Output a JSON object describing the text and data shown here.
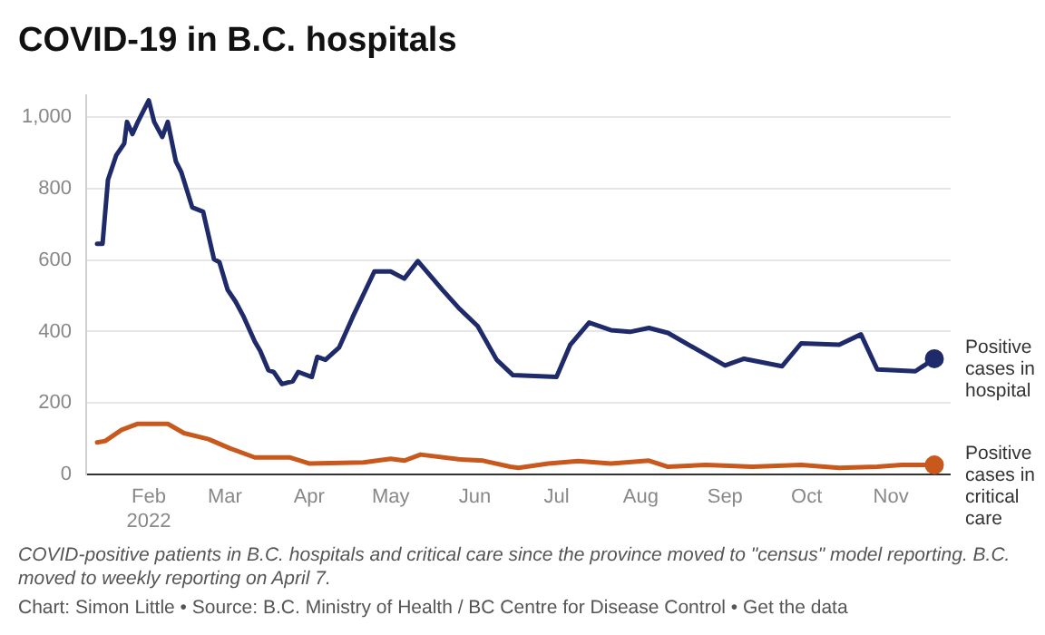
{
  "chart_data": {
    "type": "line",
    "title": "COVID-19 in B.C. hospitals",
    "annotations": [
      "COVID-positive patients in B.C. hospitals and critical care since the province moved to \"census\" model reporting. B.C. moved to weekly reporting on April 7.",
      "Chart: Simon Little • Source: B.C. Ministry of Health / BC Centre for Disease Control • Get the data"
    ],
    "xlim": [
      "2022-01-09",
      "2022-11-23"
    ],
    "xticks": [
      {
        "value": "2022-02-01",
        "label": "Feb 2022"
      },
      {
        "value": "2022-03-01",
        "label": "Mar"
      },
      {
        "value": "2022-04-01",
        "label": "Apr"
      },
      {
        "value": "2022-05-01",
        "label": "May"
      },
      {
        "value": "2022-06-01",
        "label": "Jun"
      },
      {
        "value": "2022-07-01",
        "label": "Jul"
      },
      {
        "value": "2022-08-01",
        "label": "Aug"
      },
      {
        "value": "2022-09-01",
        "label": "Sep"
      },
      {
        "value": "2022-10-01",
        "label": "Oct"
      },
      {
        "value": "2022-11-01",
        "label": "Nov"
      }
    ],
    "ylim": [
      0,
      1060
    ],
    "yticks": [
      0,
      200,
      400,
      600,
      800,
      {
        "value": 1000,
        "label": "1,000"
      }
    ],
    "grid": "y",
    "legend": false,
    "series": [
      {
        "name": "Positive cases in hospital",
        "color": "#1f2a6b",
        "x": [
          "2022-01-13",
          "2022-01-15",
          "2022-01-17",
          "2022-01-20",
          "2022-01-23",
          "2022-01-24",
          "2022-01-26",
          "2022-01-28",
          "2022-02-01",
          "2022-02-03",
          "2022-02-06",
          "2022-02-08",
          "2022-02-11",
          "2022-02-13",
          "2022-02-17",
          "2022-02-21",
          "2022-02-25",
          "2022-02-27",
          "2022-03-02",
          "2022-03-05",
          "2022-03-08",
          "2022-03-12",
          "2022-03-14",
          "2022-03-17",
          "2022-03-19",
          "2022-03-22",
          "2022-03-26",
          "2022-03-28",
          "2022-04-02",
          "2022-04-04",
          "2022-04-07",
          "2022-04-12",
          "2022-04-17",
          "2022-04-25",
          "2022-05-01",
          "2022-05-06",
          "2022-05-11",
          "2022-05-20",
          "2022-05-26",
          "2022-06-02",
          "2022-06-09",
          "2022-06-15",
          "2022-07-01",
          "2022-07-06",
          "2022-07-13",
          "2022-07-21",
          "2022-07-28",
          "2022-08-04",
          "2022-08-11",
          "2022-09-01",
          "2022-09-08",
          "2022-09-22",
          "2022-09-29",
          "2022-10-13",
          "2022-10-21",
          "2022-10-27",
          "2022-11-10",
          "2022-11-17"
        ],
        "values": [
          645,
          645,
          824,
          892,
          926,
          986,
          952,
          986,
          1046,
          986,
          944,
          986,
          875,
          845,
          747,
          735,
          602,
          594,
          517,
          483,
          440,
          372,
          346,
          292,
          287,
          253,
          261,
          287,
          273,
          329,
          321,
          355,
          440,
          568,
          568,
          548,
          597,
          517,
          466,
          415,
          321,
          278,
          273,
          362,
          425,
          404,
          399,
          410,
          396,
          305,
          324,
          303,
          367,
          363,
          392,
          294,
          289,
          324
        ]
      },
      {
        "name": "Positive cases in critical care",
        "color": "#c8581c",
        "x": [
          "2022-01-13",
          "2022-01-16",
          "2022-01-22",
          "2022-01-28",
          "2022-02-08",
          "2022-02-14",
          "2022-02-23",
          "2022-03-03",
          "2022-03-12",
          "2022-03-18",
          "2022-03-25",
          "2022-04-01",
          "2022-04-21",
          "2022-05-01",
          "2022-05-06",
          "2022-05-12",
          "2022-05-26",
          "2022-06-04",
          "2022-06-14",
          "2022-06-17",
          "2022-06-28",
          "2022-07-09",
          "2022-07-21",
          "2022-08-04",
          "2022-08-11",
          "2022-08-25",
          "2022-09-11",
          "2022-09-29",
          "2022-10-13",
          "2022-10-27",
          "2022-11-05",
          "2022-11-17"
        ],
        "values": [
          90,
          94,
          125,
          142,
          142,
          116,
          99,
          73,
          48,
          48,
          48,
          31,
          34,
          44,
          39,
          56,
          43,
          39,
          22,
          19,
          31,
          38,
          31,
          39,
          22,
          27,
          22,
          27,
          19,
          22,
          27,
          27
        ]
      }
    ]
  }
}
